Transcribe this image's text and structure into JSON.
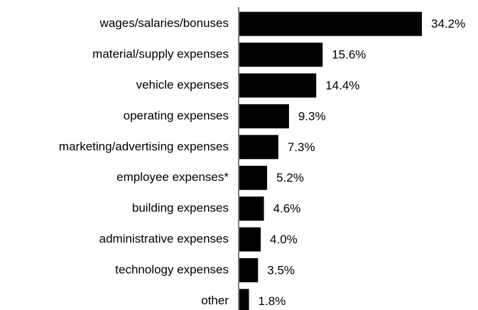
{
  "chart_data": {
    "type": "barh",
    "categories": [
      "wages/salaries/bonuses",
      "material/supply expenses",
      "vehicle expenses",
      "operating expenses",
      "marketing/advertising expenses",
      "employee expenses*",
      "building expenses",
      "administrative expenses",
      "technology expenses",
      "other"
    ],
    "values": [
      34.2,
      15.6,
      14.4,
      9.3,
      7.3,
      5.2,
      4.6,
      4.0,
      3.5,
      1.8
    ],
    "value_labels": [
      "34.2%",
      "15.6%",
      "14.4%",
      "9.3%",
      "7.3%",
      "5.2%",
      "4.6%",
      "4.0%",
      "3.5%",
      "1.8%"
    ],
    "color": "#000000"
  }
}
